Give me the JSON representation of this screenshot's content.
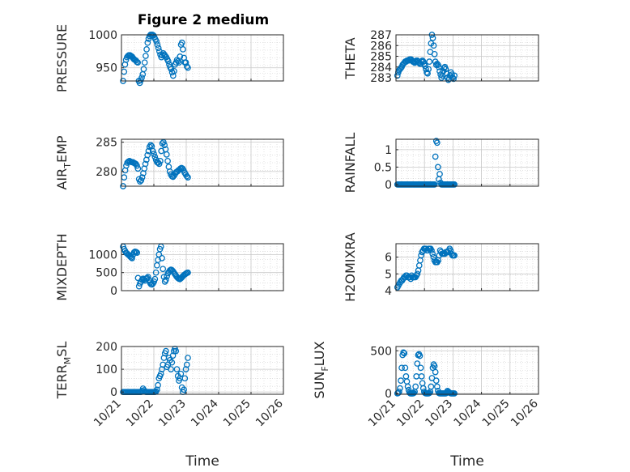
{
  "figure": {
    "title": "Figure 2 medium",
    "marker_color": "#0072BD"
  },
  "chart_data": [
    {
      "type": "scatter",
      "title": "Figure 2 medium",
      "ylabel": "PRESSURE",
      "ylim": [
        930,
        1000
      ],
      "yticks": [
        950,
        1000
      ],
      "xlim": [
        0,
        5
      ],
      "xticklabels": [],
      "values": [
        930,
        944,
        955,
        962,
        966,
        968,
        969,
        969,
        968,
        967,
        965,
        963,
        962,
        961,
        959,
        958,
        930,
        927,
        931,
        935,
        940,
        948,
        958,
        968,
        978,
        988,
        994,
        998,
        1000,
        1000,
        1000,
        999,
        996,
        993,
        990,
        985,
        980,
        975,
        970,
        966,
        969,
        972,
        970,
        968,
        966,
        963,
        960,
        955,
        951,
        948,
        943,
        938,
        945,
        955,
        958,
        962,
        960,
        958,
        967,
        985,
        988,
        978,
        965,
        958,
        958,
        952,
        950
      ],
      "x_start": 0.05,
      "x_end": 2.05
    },
    {
      "type": "scatter",
      "title": "",
      "ylabel": "THETA",
      "ylim": [
        282.7,
        287
      ],
      "yticks": [
        283,
        284,
        285,
        286,
        287
      ],
      "xlim": [
        0,
        5
      ],
      "xticklabels": [],
      "values": [
        283.2,
        283.5,
        283.7,
        283.8,
        283.9,
        284.0,
        284.2,
        284.3,
        284.4,
        284.5,
        284.5,
        284.6,
        284.6,
        284.6,
        284.7,
        284.7,
        284.7,
        284.6,
        284.5,
        284.5,
        284.4,
        284.5,
        284.6,
        284.6,
        284.5,
        284.4,
        284.3,
        284.3,
        284.5,
        284.6,
        284.5,
        284.3,
        284.1,
        283.8,
        283.5,
        283.4,
        283.8,
        284.5,
        285.4,
        286.2,
        287.0,
        286.7,
        286.0,
        285.2,
        284.5,
        284.2,
        284.3,
        284.2,
        284.0,
        283.6,
        283.3,
        283.0,
        283.2,
        283.6,
        283.9,
        284.0,
        283.8,
        283.4,
        283.0,
        282.8,
        282.9,
        283.2,
        283.5,
        283.3,
        283.0,
        282.9,
        283.2
      ],
      "x_start": 0.05,
      "x_end": 2.05
    },
    {
      "type": "scatter",
      "title": "",
      "ylabel_parts": [
        "AIR",
        "T",
        "EMP"
      ],
      "ylim": [
        277.5,
        285.5
      ],
      "yticks": [
        280,
        285
      ],
      "xlim": [
        0,
        5
      ],
      "xticklabels": [],
      "values": [
        277.5,
        279.0,
        280.2,
        281.0,
        281.5,
        281.7,
        281.8,
        281.7,
        281.6,
        281.6,
        281.5,
        281.4,
        281.3,
        281.0,
        280.5,
        278.7,
        278.3,
        278.5,
        279.0,
        279.7,
        280.5,
        281.3,
        282.0,
        282.8,
        283.5,
        284.2,
        284.5,
        284.3,
        283.5,
        283.0,
        282.5,
        282.0,
        281.6,
        281.5,
        281.3,
        281.8,
        283.5,
        284.8,
        285.0,
        284.5,
        283.8,
        282.9,
        281.8,
        280.8,
        280.0,
        279.5,
        279.2,
        279.1,
        279.3,
        279.6,
        279.9,
        280.0,
        280.2,
        280.3,
        280.5,
        280.6,
        280.5,
        280.2,
        279.8,
        279.5,
        279.2,
        279.0
      ],
      "x_start": 0.05,
      "x_end": 2.05
    },
    {
      "type": "scatter",
      "title": "",
      "ylabel": "RAINFALL",
      "ylim": [
        -0.05,
        1.3
      ],
      "yticks": [
        0,
        0.5,
        1
      ],
      "ytick_labels": [
        "0",
        "0.5",
        "1"
      ],
      "xlim": [
        0,
        5
      ],
      "xticklabels": [],
      "values": [
        0,
        0,
        0,
        0,
        0,
        0,
        0,
        0,
        0,
        0,
        0,
        0,
        0,
        0,
        0,
        0,
        0,
        0,
        0,
        0,
        0,
        0,
        0,
        0,
        0,
        0,
        0,
        0,
        0,
        0,
        0,
        0,
        0,
        0,
        0,
        0,
        0,
        0,
        0,
        0,
        0,
        0,
        0,
        0,
        0.8,
        1.25,
        1.2,
        0.5,
        0.15,
        0.3,
        0.05,
        0,
        0,
        0,
        0,
        0,
        0,
        0,
        0,
        0,
        0,
        0,
        0,
        0,
        0,
        0,
        0
      ],
      "x_start": 0.05,
      "x_end": 2.05
    },
    {
      "type": "scatter",
      "title": "",
      "ylabel": "MIXDEPTH",
      "ylim": [
        0,
        1300
      ],
      "yticks": [
        0,
        500,
        1000
      ],
      "xlim": [
        0,
        5
      ],
      "xticklabels": [],
      "values": [
        1220,
        1150,
        1100,
        1050,
        1030,
        1000,
        980,
        950,
        920,
        900,
        1000,
        1060,
        1080,
        1070,
        1050,
        350,
        120,
        200,
        250,
        300,
        330,
        310,
        280,
        330,
        350,
        380,
        300,
        220,
        180,
        170,
        200,
        250,
        320,
        500,
        700,
        850,
        1000,
        1150,
        1220,
        900,
        600,
        380,
        250,
        300,
        400,
        480,
        520,
        560,
        580,
        570,
        540,
        500,
        460,
        420,
        380,
        350,
        330,
        320,
        340,
        370,
        400,
        430,
        450,
        470,
        490,
        500
      ],
      "x_start": 0.05,
      "x_end": 2.05
    },
    {
      "type": "scatter",
      "title": "",
      "ylabel": "H2OMIXRA",
      "ylim": [
        4,
        6.8
      ],
      "yticks": [
        4,
        5,
        6
      ],
      "xlim": [
        0,
        5
      ],
      "xticklabels": [],
      "values": [
        4.2,
        4.3,
        4.4,
        4.5,
        4.6,
        4.6,
        4.7,
        4.8,
        4.8,
        4.9,
        4.9,
        4.8,
        4.8,
        4.8,
        4.7,
        4.9,
        4.8,
        4.8,
        4.8,
        4.8,
        4.9,
        5.0,
        5.2,
        5.5,
        5.8,
        6.1,
        6.3,
        6.4,
        6.5,
        6.5,
        6.5,
        6.4,
        6.4,
        6.5,
        6.5,
        6.5,
        6.4,
        6.2,
        6.0,
        5.8,
        5.7,
        5.7,
        5.7,
        5.8,
        6.1,
        6.4,
        6.3,
        6.2,
        6.2,
        6.2,
        6.2,
        6.3,
        6.3,
        6.3,
        6.4,
        6.5,
        6.4,
        6.2,
        6.1,
        6.1,
        6.1
      ],
      "x_start": 0.05,
      "x_end": 2.05
    },
    {
      "type": "scatter",
      "title": "",
      "ylabel_parts": [
        "TERR",
        "M",
        "SL"
      ],
      "ylim": [
        -10,
        200
      ],
      "yticks": [
        0,
        100,
        200
      ],
      "xlim": [
        0,
        5
      ],
      "xticklabels": [
        "10/21",
        "10/22",
        "10/23",
        "10/24",
        "10/25",
        "10/26"
      ],
      "xlabel": "Time",
      "values": [
        0,
        0,
        0,
        0,
        0,
        0,
        0,
        0,
        0,
        0,
        0,
        0,
        0,
        0,
        0,
        0,
        0,
        0,
        0,
        5,
        15,
        8,
        2,
        0,
        0,
        0,
        0,
        0,
        0,
        0,
        0,
        0,
        0,
        2,
        10,
        30,
        60,
        70,
        80,
        100,
        120,
        150,
        170,
        180,
        110,
        120,
        150,
        140,
        100,
        130,
        160,
        180,
        190,
        180,
        100,
        70,
        50,
        60,
        80,
        20,
        0,
        10,
        60,
        100,
        120,
        150
      ],
      "x_start": 0.05,
      "x_end": 2.05
    },
    {
      "type": "scatter",
      "title": "",
      "ylabel_parts": [
        "SUN",
        "F",
        "LUX"
      ],
      "ylim": [
        -10,
        550
      ],
      "yticks": [
        0,
        500
      ],
      "xlim": [
        0,
        5
      ],
      "xticklabels": [
        "10/21",
        "10/22",
        "10/23",
        "10/24",
        "10/25",
        "10/26"
      ],
      "xlabel": "Time",
      "values": [
        0,
        5,
        20,
        60,
        150,
        300,
        450,
        480,
        470,
        300,
        200,
        140,
        80,
        40,
        10,
        0,
        0,
        0,
        0,
        5,
        20,
        80,
        200,
        350,
        450,
        460,
        440,
        300,
        200,
        120,
        60,
        20,
        5,
        0,
        0,
        0,
        0,
        5,
        20,
        80,
        180,
        300,
        340,
        320,
        250,
        150,
        80,
        30,
        5,
        0,
        0,
        0,
        0,
        0,
        0,
        0,
        0,
        10,
        30,
        20,
        10,
        5,
        0,
        0,
        0,
        0,
        0
      ],
      "x_start": 0.05,
      "x_end": 2.05
    }
  ]
}
